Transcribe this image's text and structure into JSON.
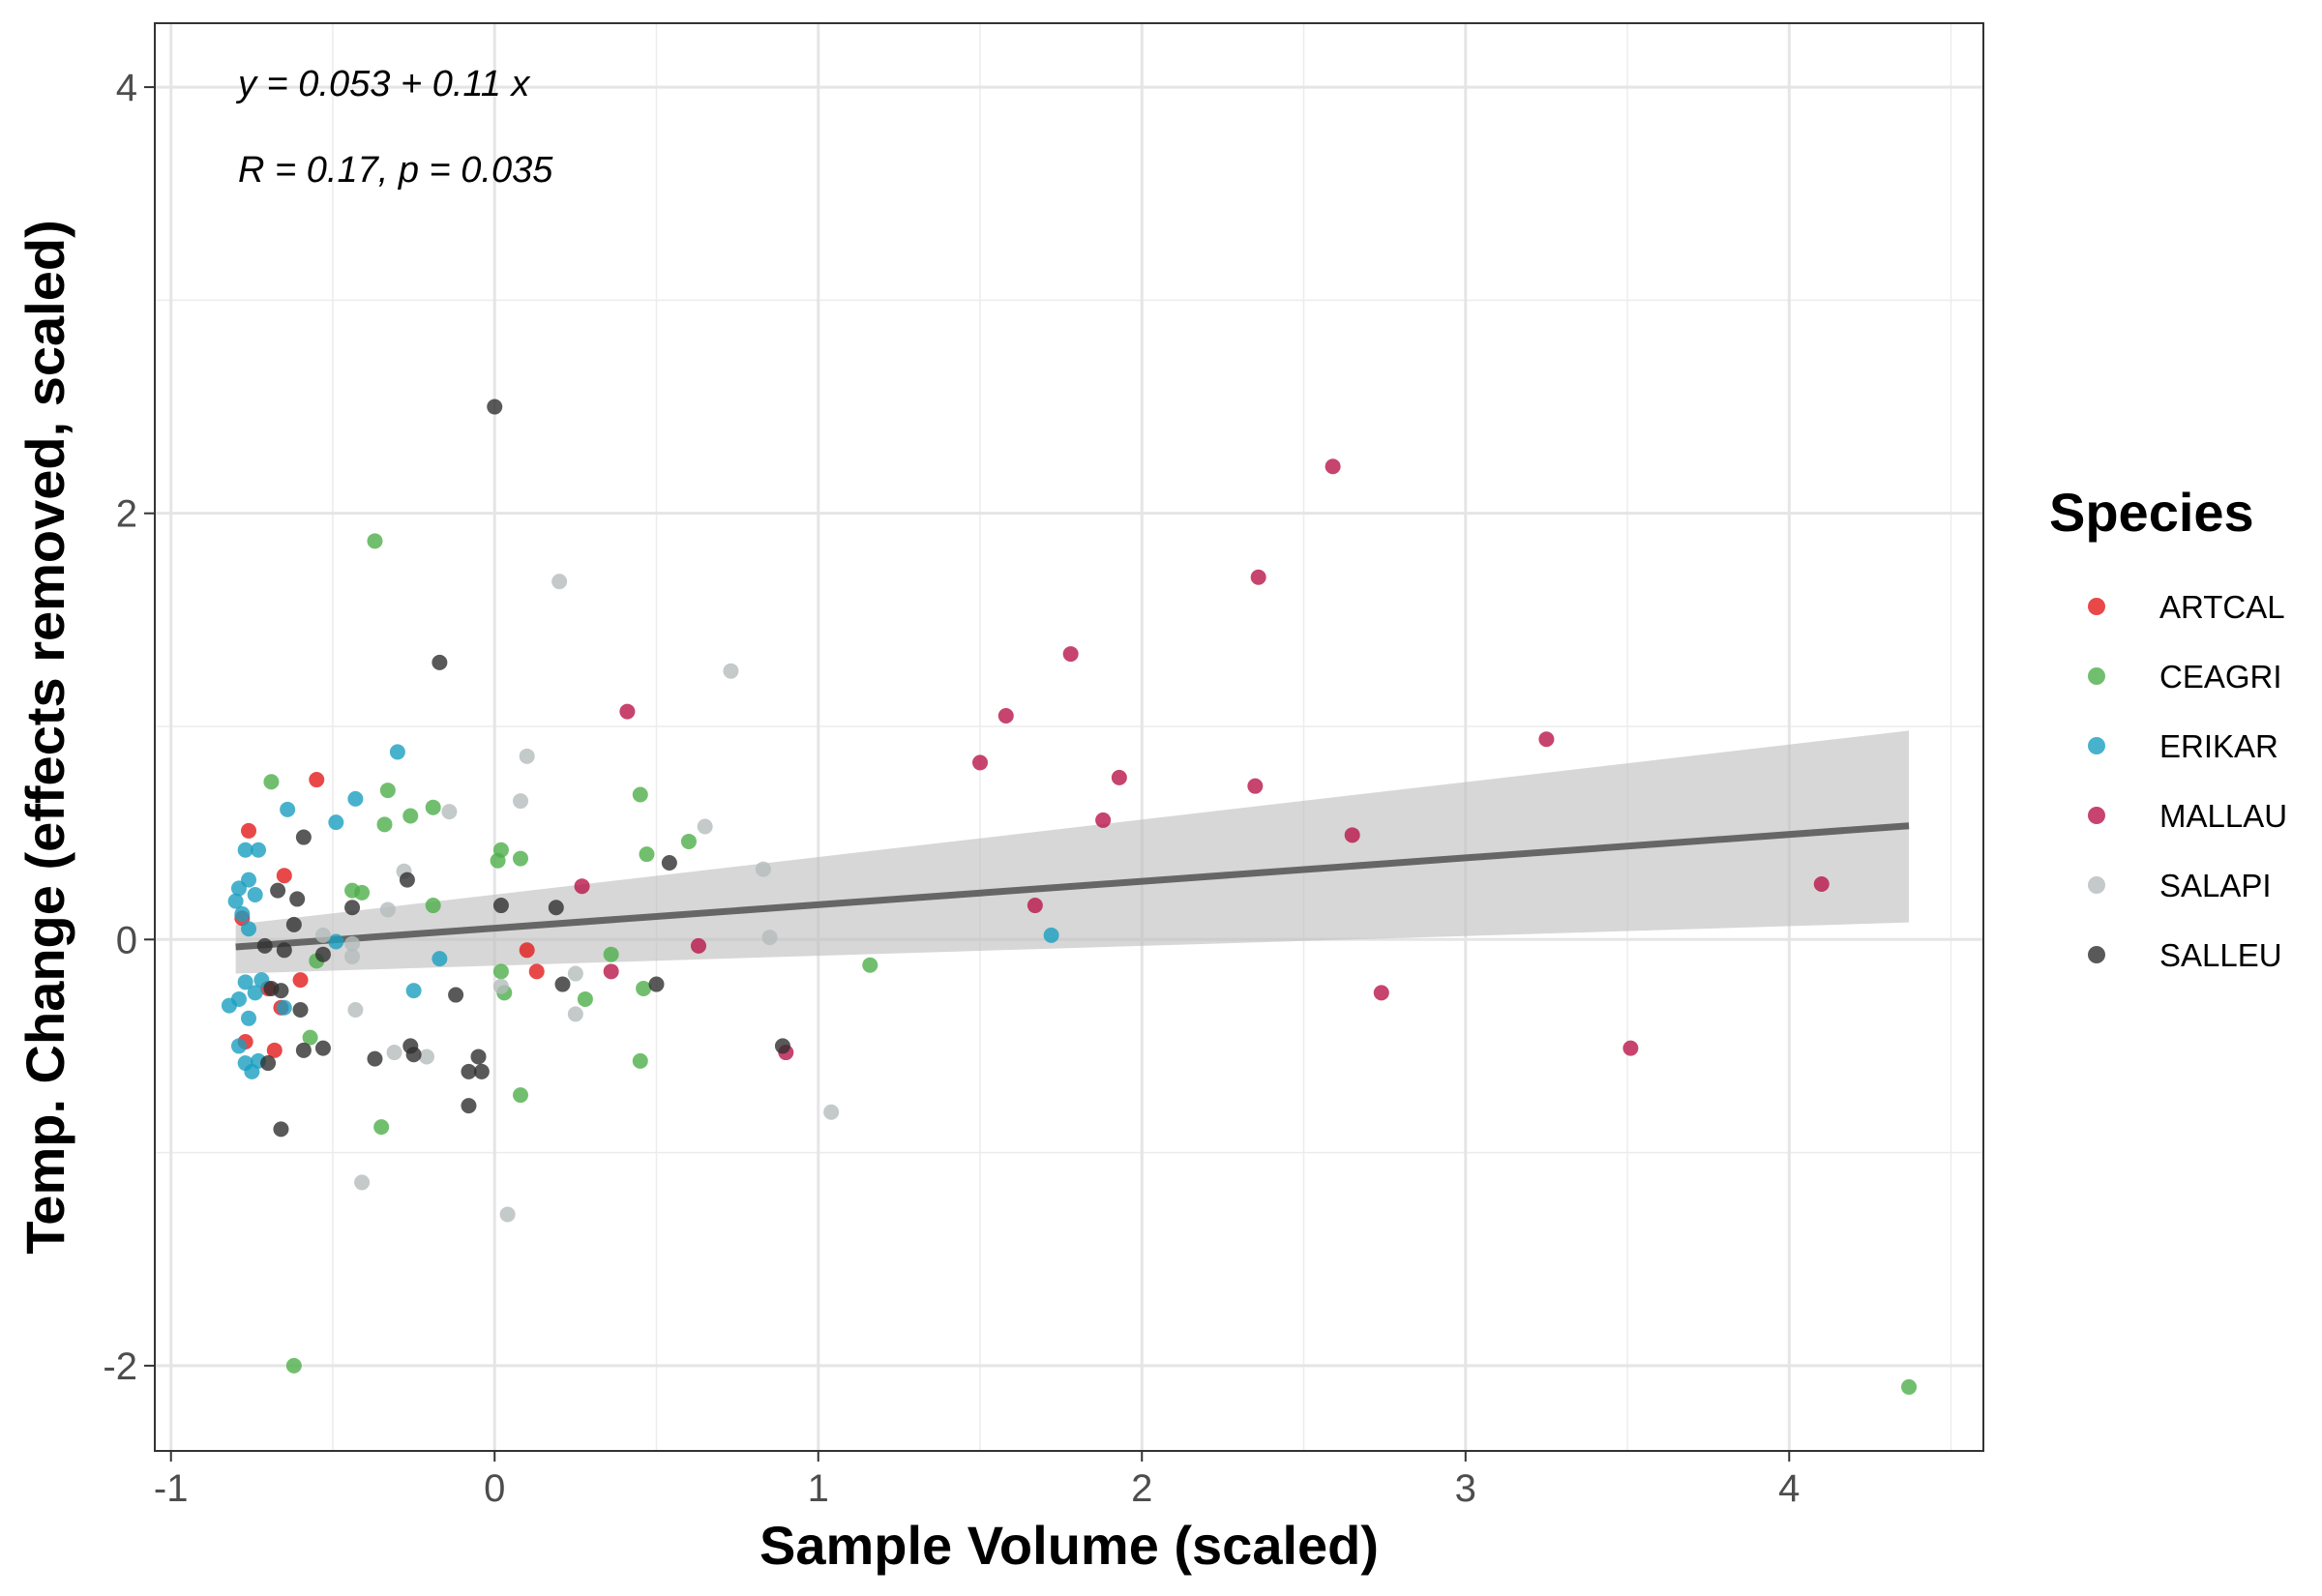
{
  "chart_data": {
    "type": "scatter",
    "xlabel": "Sample Volume (scaled)",
    "ylabel": "Temp. Change (effects removed, scaled)",
    "xlim": [
      -1.05,
      4.6
    ],
    "ylim": [
      -2.4,
      4.3
    ],
    "x_ticks": [
      -1,
      0,
      1,
      2,
      3,
      4
    ],
    "x_tick_labels": [
      "-1",
      "0",
      "1",
      "2",
      "3",
      "4"
    ],
    "y_ticks": [
      -2,
      0,
      2,
      4
    ],
    "y_tick_labels": [
      "-2",
      "0",
      "2",
      "4"
    ],
    "grid": true,
    "legend_position": "right",
    "legend_title": "Species",
    "annotations": {
      "equation": "y = 0.053 + 0.11 x",
      "stats": "R = 0.17, p = 0.035"
    },
    "regression": {
      "intercept": 0.053,
      "slope": 0.11,
      "x_range": [
        -0.8,
        4.37
      ],
      "ci_lower": [
        -0.16,
        0.08
      ],
      "ci_upper": [
        0.07,
        0.98
      ],
      "line_color": "#666666",
      "band_color": "#bdbdbd"
    },
    "series": [
      {
        "name": "ARTCAL",
        "color": "#E41A1C",
        "points": [
          [
            -0.76,
            0.51
          ],
          [
            -0.55,
            0.75
          ],
          [
            -0.65,
            0.3
          ],
          [
            -0.6,
            -0.19
          ],
          [
            -0.66,
            -0.32
          ],
          [
            -0.77,
            -0.48
          ],
          [
            -0.68,
            -0.52
          ],
          [
            -0.78,
            0.1
          ],
          [
            0.1,
            -0.05
          ],
          [
            0.13,
            -0.15
          ],
          [
            -0.7,
            -0.23
          ]
        ]
      },
      {
        "name": "CEAGRI",
        "color": "#4DAF4A",
        "points": [
          [
            -0.69,
            0.74
          ],
          [
            -0.37,
            1.87
          ],
          [
            -0.33,
            0.7
          ],
          [
            -0.34,
            0.54
          ],
          [
            -0.26,
            0.58
          ],
          [
            -0.19,
            0.62
          ],
          [
            -0.44,
            0.23
          ],
          [
            -0.41,
            0.22
          ],
          [
            -0.19,
            0.16
          ],
          [
            0.01,
            0.37
          ],
          [
            0.02,
            0.42
          ],
          [
            0.08,
            0.38
          ],
          [
            0.45,
            0.68
          ],
          [
            0.47,
            0.4
          ],
          [
            0.6,
            0.46
          ],
          [
            0.36,
            -0.07
          ],
          [
            0.02,
            -0.15
          ],
          [
            0.03,
            -0.25
          ],
          [
            0.28,
            -0.28
          ],
          [
            0.46,
            -0.23
          ],
          [
            0.45,
            -0.57
          ],
          [
            0.08,
            -0.73
          ],
          [
            -0.35,
            -0.88
          ],
          [
            1.16,
            -0.12
          ],
          [
            -0.57,
            -0.46
          ],
          [
            -0.55,
            -0.1
          ],
          [
            -0.62,
            -2.0
          ],
          [
            4.37,
            -2.1
          ]
        ]
      },
      {
        "name": "ERIKAR",
        "color": "#1A9FC0",
        "points": [
          [
            -0.8,
            0.18
          ],
          [
            -0.79,
            0.24
          ],
          [
            -0.76,
            0.28
          ],
          [
            -0.77,
            0.42
          ],
          [
            -0.73,
            0.42
          ],
          [
            -0.74,
            0.21
          ],
          [
            -0.78,
            0.12
          ],
          [
            -0.76,
            0.05
          ],
          [
            -0.79,
            -0.28
          ],
          [
            -0.82,
            -0.31
          ],
          [
            -0.76,
            -0.37
          ],
          [
            -0.77,
            -0.2
          ],
          [
            -0.74,
            -0.25
          ],
          [
            -0.72,
            -0.19
          ],
          [
            -0.79,
            -0.5
          ],
          [
            -0.77,
            -0.58
          ],
          [
            -0.75,
            -0.62
          ],
          [
            -0.73,
            -0.57
          ],
          [
            -0.64,
            0.61
          ],
          [
            -0.49,
            0.55
          ],
          [
            -0.43,
            0.66
          ],
          [
            -0.3,
            0.88
          ],
          [
            -0.49,
            -0.01
          ],
          [
            -0.25,
            -0.24
          ],
          [
            -0.17,
            -0.09
          ],
          [
            1.72,
            0.02
          ],
          [
            -0.65,
            -0.32
          ]
        ]
      },
      {
        "name": "MALLAU",
        "color": "#B8154A",
        "points": [
          [
            2.59,
            2.22
          ],
          [
            2.36,
            1.7
          ],
          [
            1.78,
            1.34
          ],
          [
            1.58,
            1.05
          ],
          [
            0.41,
            1.07
          ],
          [
            1.5,
            0.83
          ],
          [
            1.93,
            0.76
          ],
          [
            2.35,
            0.72
          ],
          [
            1.88,
            0.56
          ],
          [
            3.25,
            0.94
          ],
          [
            2.65,
            0.49
          ],
          [
            1.67,
            0.16
          ],
          [
            4.1,
            0.26
          ],
          [
            0.27,
            0.25
          ],
          [
            0.63,
            -0.03
          ],
          [
            0.36,
            -0.15
          ],
          [
            2.74,
            -0.25
          ],
          [
            3.51,
            -0.51
          ],
          [
            0.9,
            -0.53
          ]
        ]
      },
      {
        "name": "SALAPI",
        "color": "#B4BDBB",
        "points": [
          [
            0.2,
            1.68
          ],
          [
            0.73,
            1.26
          ],
          [
            0.1,
            0.86
          ],
          [
            0.08,
            0.65
          ],
          [
            -0.14,
            0.6
          ],
          [
            0.65,
            0.53
          ],
          [
            0.83,
            0.33
          ],
          [
            -0.28,
            0.32
          ],
          [
            -0.33,
            0.14
          ],
          [
            -0.53,
            0.02
          ],
          [
            -0.44,
            -0.02
          ],
          [
            -0.44,
            -0.08
          ],
          [
            0.85,
            0.01
          ],
          [
            0.25,
            -0.16
          ],
          [
            0.25,
            -0.35
          ],
          [
            -0.43,
            -0.33
          ],
          [
            -0.31,
            -0.53
          ],
          [
            -0.21,
            -0.55
          ],
          [
            1.04,
            -0.81
          ],
          [
            -0.41,
            -1.14
          ],
          [
            0.04,
            -1.29
          ],
          [
            0.02,
            -0.22
          ]
        ]
      },
      {
        "name": "SALLEU",
        "color": "#303030",
        "points": [
          [
            0.0,
            2.5
          ],
          [
            -0.17,
            1.3
          ],
          [
            -0.59,
            0.48
          ],
          [
            -0.27,
            0.28
          ],
          [
            -0.67,
            0.23
          ],
          [
            -0.61,
            0.19
          ],
          [
            -0.44,
            0.15
          ],
          [
            0.02,
            0.16
          ],
          [
            0.19,
            0.15
          ],
          [
            0.54,
            0.36
          ],
          [
            -0.71,
            -0.03
          ],
          [
            -0.62,
            0.07
          ],
          [
            -0.65,
            -0.05
          ],
          [
            -0.53,
            -0.07
          ],
          [
            -0.69,
            -0.23
          ],
          [
            -0.66,
            -0.24
          ],
          [
            -0.12,
            -0.26
          ],
          [
            0.21,
            -0.21
          ],
          [
            0.5,
            -0.21
          ],
          [
            -0.6,
            -0.33
          ],
          [
            -0.59,
            -0.52
          ],
          [
            -0.53,
            -0.51
          ],
          [
            -0.26,
            -0.5
          ],
          [
            -0.25,
            -0.54
          ],
          [
            -0.37,
            -0.56
          ],
          [
            -0.05,
            -0.55
          ],
          [
            -0.04,
            -0.62
          ],
          [
            -0.08,
            -0.62
          ],
          [
            -0.08,
            -0.78
          ],
          [
            -0.66,
            -0.89
          ],
          [
            -0.7,
            -0.58
          ],
          [
            0.89,
            -0.5
          ]
        ]
      }
    ]
  }
}
